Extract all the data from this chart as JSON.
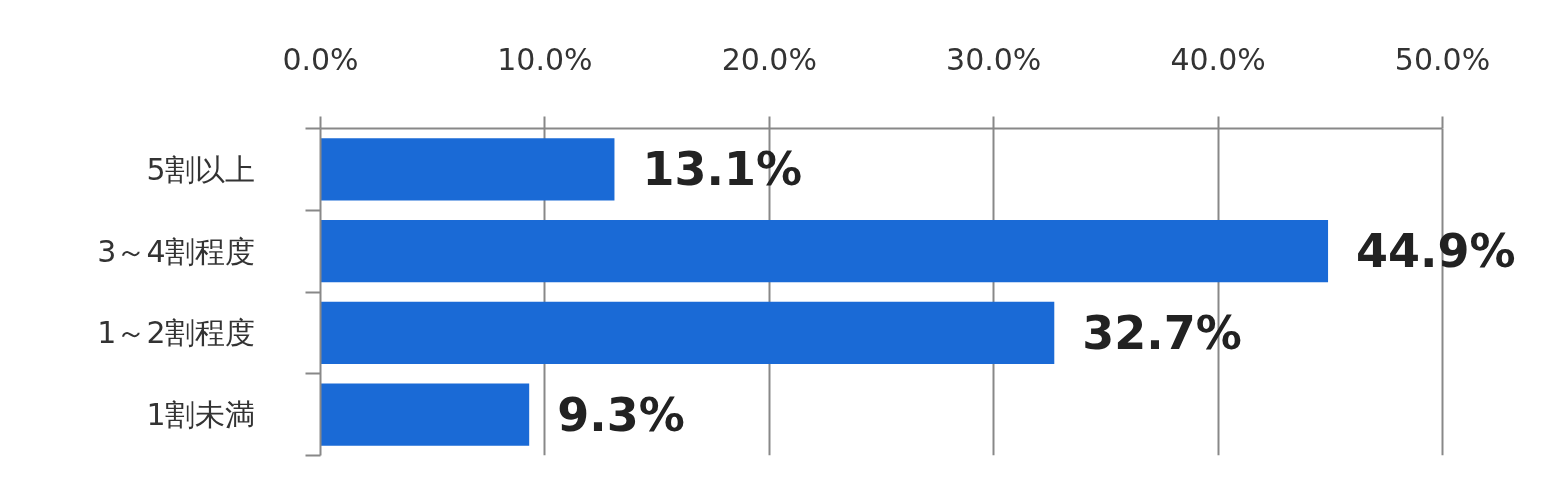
{
  "chart_data": {
    "type": "bar",
    "orientation": "horizontal",
    "categories": [
      "5割以上",
      "3～4割程度",
      "1～2割程度",
      "1割未満"
    ],
    "values": [
      13.1,
      44.9,
      32.7,
      9.3
    ],
    "color": "#1a6ad6",
    "value_labels": [
      "13.1%",
      "44.9%",
      "32.7%",
      "9.3%"
    ],
    "xlim": [
      0,
      50
    ],
    "xticks": [
      {
        "value": 0,
        "label": "0.0%"
      },
      {
        "value": 10,
        "label": "10.0%"
      },
      {
        "value": 20,
        "label": "20.0%"
      },
      {
        "value": 30,
        "label": "30.0%"
      },
      {
        "value": 40,
        "label": "40.0%"
      },
      {
        "value": 50,
        "label": "50.0%"
      }
    ],
    "grid": "x"
  }
}
